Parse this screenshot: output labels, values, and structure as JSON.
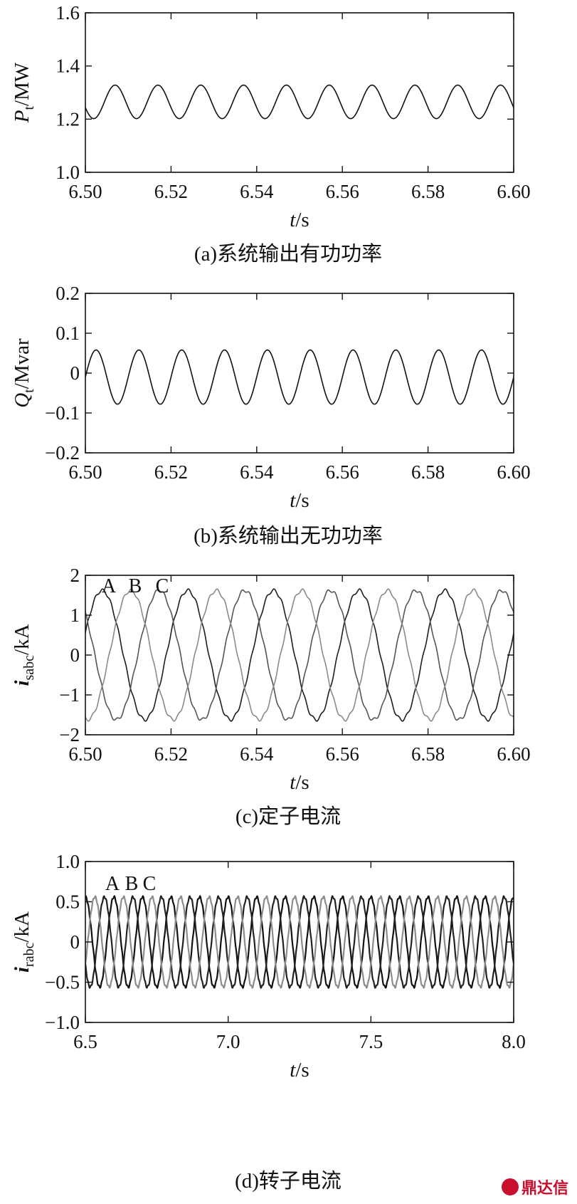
{
  "chart_data": [
    {
      "id": "a",
      "type": "line",
      "caption": "(a)系统输出有功功率",
      "ylabel_main": "P",
      "ylabel_sub": "t",
      "ylabel_unit": "/MW",
      "xlabel_main": "t",
      "xlabel_unit": "/s",
      "xlim": [
        6.5,
        6.6
      ],
      "ylim": [
        1.0,
        1.6
      ],
      "xticks": [
        "6.50",
        "6.52",
        "6.54",
        "6.56",
        "6.58",
        "6.60"
      ],
      "xtick_values": [
        6.5,
        6.52,
        6.54,
        6.56,
        6.58,
        6.6
      ],
      "yticks": [
        "1.0",
        "1.2",
        "1.4",
        "1.6"
      ],
      "ytick_values": [
        1.0,
        1.2,
        1.4,
        1.6
      ],
      "series": [
        {
          "mean": 1.265,
          "amplitude": 0.063,
          "frequency_hz": 100,
          "phase_deg": 200,
          "color": "#111111"
        }
      ]
    },
    {
      "id": "b",
      "type": "line",
      "caption": "(b)系统输出无功功率",
      "ylabel_main": "Q",
      "ylabel_sub": "t",
      "ylabel_unit": "/Mvar",
      "xlabel_main": "t",
      "xlabel_unit": "/s",
      "xlim": [
        6.5,
        6.6
      ],
      "ylim": [
        -0.2,
        0.2
      ],
      "xticks": [
        "6.50",
        "6.52",
        "6.54",
        "6.56",
        "6.58",
        "6.60"
      ],
      "xtick_values": [
        6.5,
        6.52,
        6.54,
        6.56,
        6.58,
        6.6
      ],
      "yticks": [
        "−0.2",
        "−0.1",
        "0",
        "0.1",
        "0.2"
      ],
      "ytick_values": [
        -0.2,
        -0.1,
        0,
        0.1,
        0.2
      ],
      "series": [
        {
          "mean": -0.01,
          "amplitude": 0.068,
          "frequency_hz": 100,
          "phase_deg": 0,
          "color": "#111111"
        }
      ]
    },
    {
      "id": "c",
      "type": "line",
      "caption": "(c)定子电流",
      "ylabel_main": "i",
      "ylabel_sub": "sabc",
      "ylabel_unit": "/kA",
      "xlabel_main": "t",
      "xlabel_unit": "/s",
      "xlim": [
        6.5,
        6.6
      ],
      "ylim": [
        -2,
        2
      ],
      "xticks": [
        "6.50",
        "6.52",
        "6.54",
        "6.56",
        "6.58",
        "6.60"
      ],
      "xtick_values": [
        6.5,
        6.52,
        6.54,
        6.56,
        6.58,
        6.6
      ],
      "yticks": [
        "−2",
        "−1",
        "0",
        "1",
        "2"
      ],
      "ytick_values": [
        -2,
        -1,
        0,
        1,
        2
      ],
      "annotations": [
        "A",
        "B",
        "C"
      ],
      "series": [
        {
          "name": "A",
          "amplitude": 1.62,
          "frequency_hz": 50,
          "phase_deg": 20,
          "color": "#1e1e1e"
        },
        {
          "name": "B",
          "amplitude": 1.62,
          "frequency_hz": 50,
          "phase_deg": 140,
          "color": "#555555"
        },
        {
          "name": "C",
          "amplitude": 1.62,
          "frequency_hz": 50,
          "phase_deg": 260,
          "color": "#8a8a8a"
        }
      ]
    },
    {
      "id": "d",
      "type": "line",
      "caption": "(d)转子电流",
      "ylabel_main": "i",
      "ylabel_sub": "rabc",
      "ylabel_unit": "/kA",
      "xlabel_main": "t",
      "xlabel_unit": "/s",
      "xlim": [
        6.5,
        8.0
      ],
      "ylim": [
        -1.0,
        1.0
      ],
      "xticks": [
        "6.5",
        "7.0",
        "7.5",
        "8.0"
      ],
      "xtick_values": [
        6.5,
        7.0,
        7.5,
        8.0
      ],
      "yticks": [
        "−1.0",
        "−0.5",
        "0",
        "0.5",
        "1.0"
      ],
      "ytick_values": [
        -1.0,
        -0.5,
        0,
        0.5,
        1.0
      ],
      "annotations": [
        "A",
        "B",
        "C"
      ],
      "series": [
        {
          "name": "A",
          "amplitude": 0.56,
          "frequency_hz": 10,
          "phase_deg": 90,
          "color": "#111111"
        },
        {
          "name": "B",
          "amplitude": 0.56,
          "frequency_hz": 10,
          "phase_deg": 210,
          "color": "#222222"
        },
        {
          "name": "C",
          "amplitude": 0.56,
          "frequency_hz": 10,
          "phase_deg": 330,
          "color": "#8c8c8c"
        }
      ]
    }
  ],
  "watermark": {
    "text": "鼎达信",
    "color": "#c8102e"
  }
}
